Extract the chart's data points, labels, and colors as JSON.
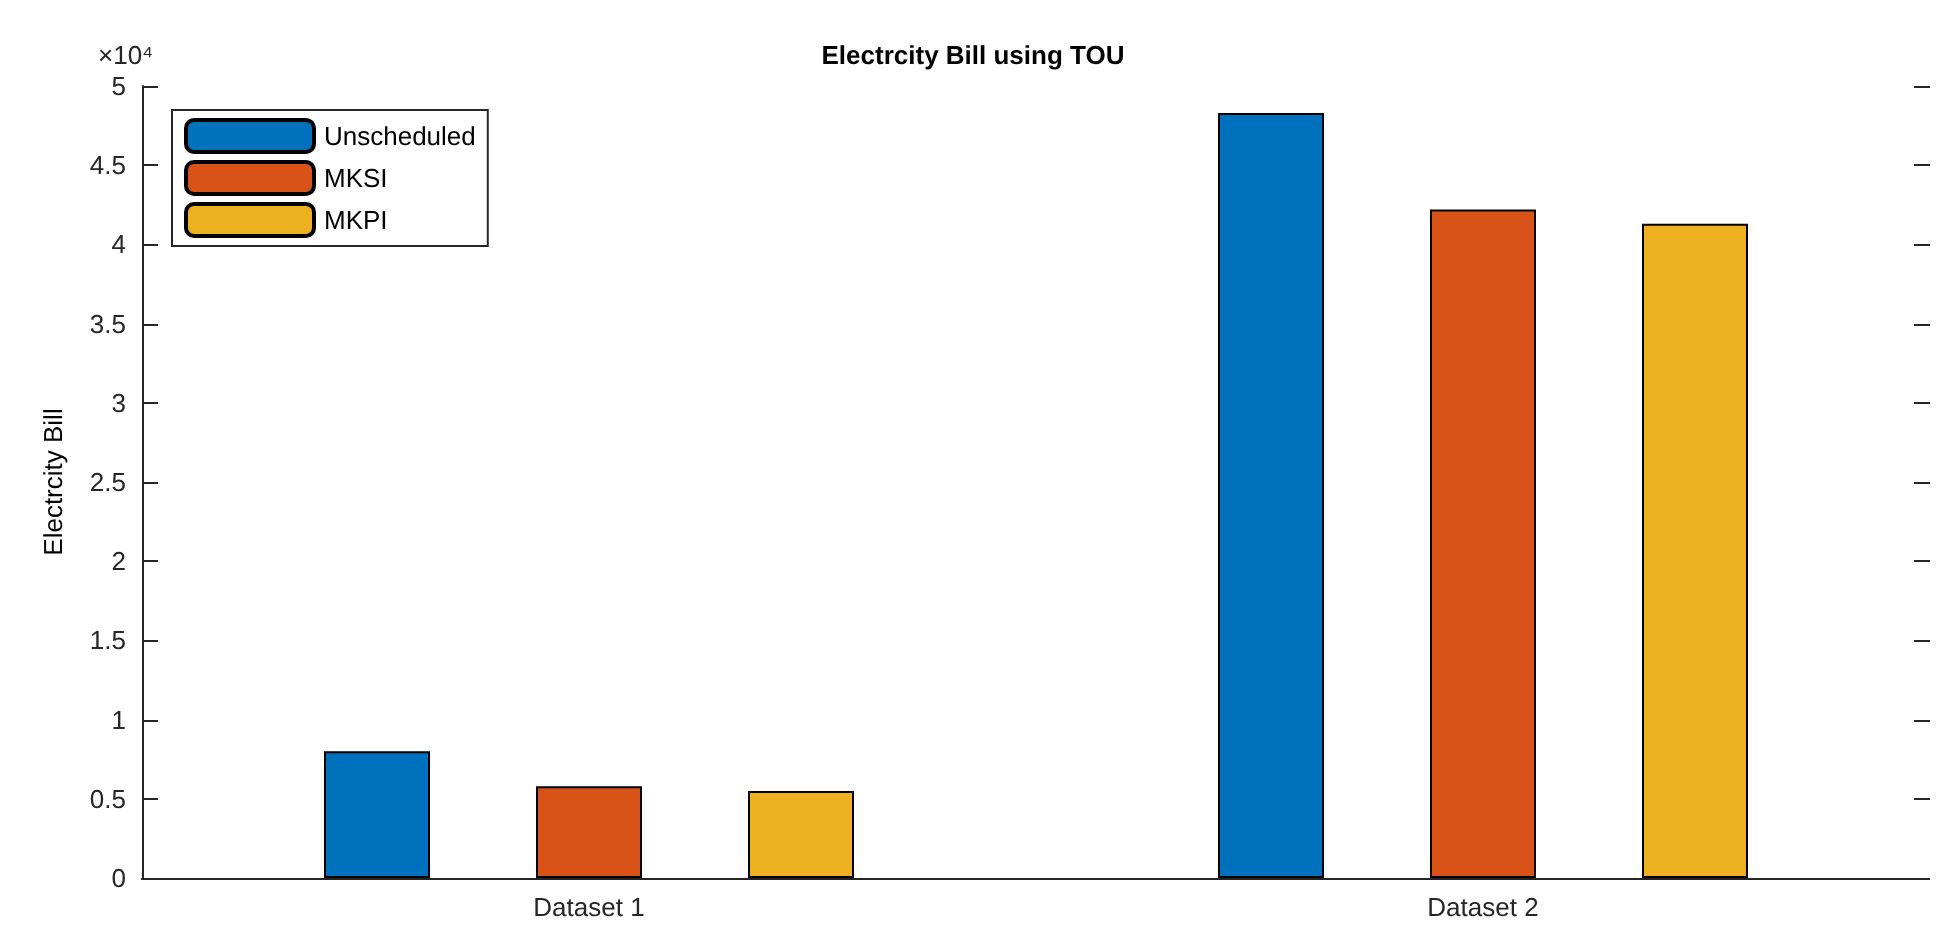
{
  "chart_data": {
    "type": "bar",
    "title": "Electrcity Bill using TOU",
    "ylabel": "Electrcity Bill",
    "annotations": [
      "×10⁴"
    ],
    "categories": [
      "Dataset 1",
      "Dataset 2"
    ],
    "series": [
      {
        "name": "Unscheduled",
        "color": "#0072bd",
        "values": [
          0.8,
          4.83
        ]
      },
      {
        "name": "MKSI",
        "color": "#d95319",
        "values": [
          0.58,
          4.22
        ]
      },
      {
        "name": "MKPI",
        "color": "#edb120",
        "values": [
          0.55,
          4.13
        ]
      }
    ],
    "ylim": [
      0,
      5
    ],
    "yticks": [
      0,
      0.5,
      1,
      1.5,
      2,
      2.5,
      3,
      3.5,
      4,
      4.5,
      5
    ],
    "grid": false,
    "legend": "top left"
  }
}
